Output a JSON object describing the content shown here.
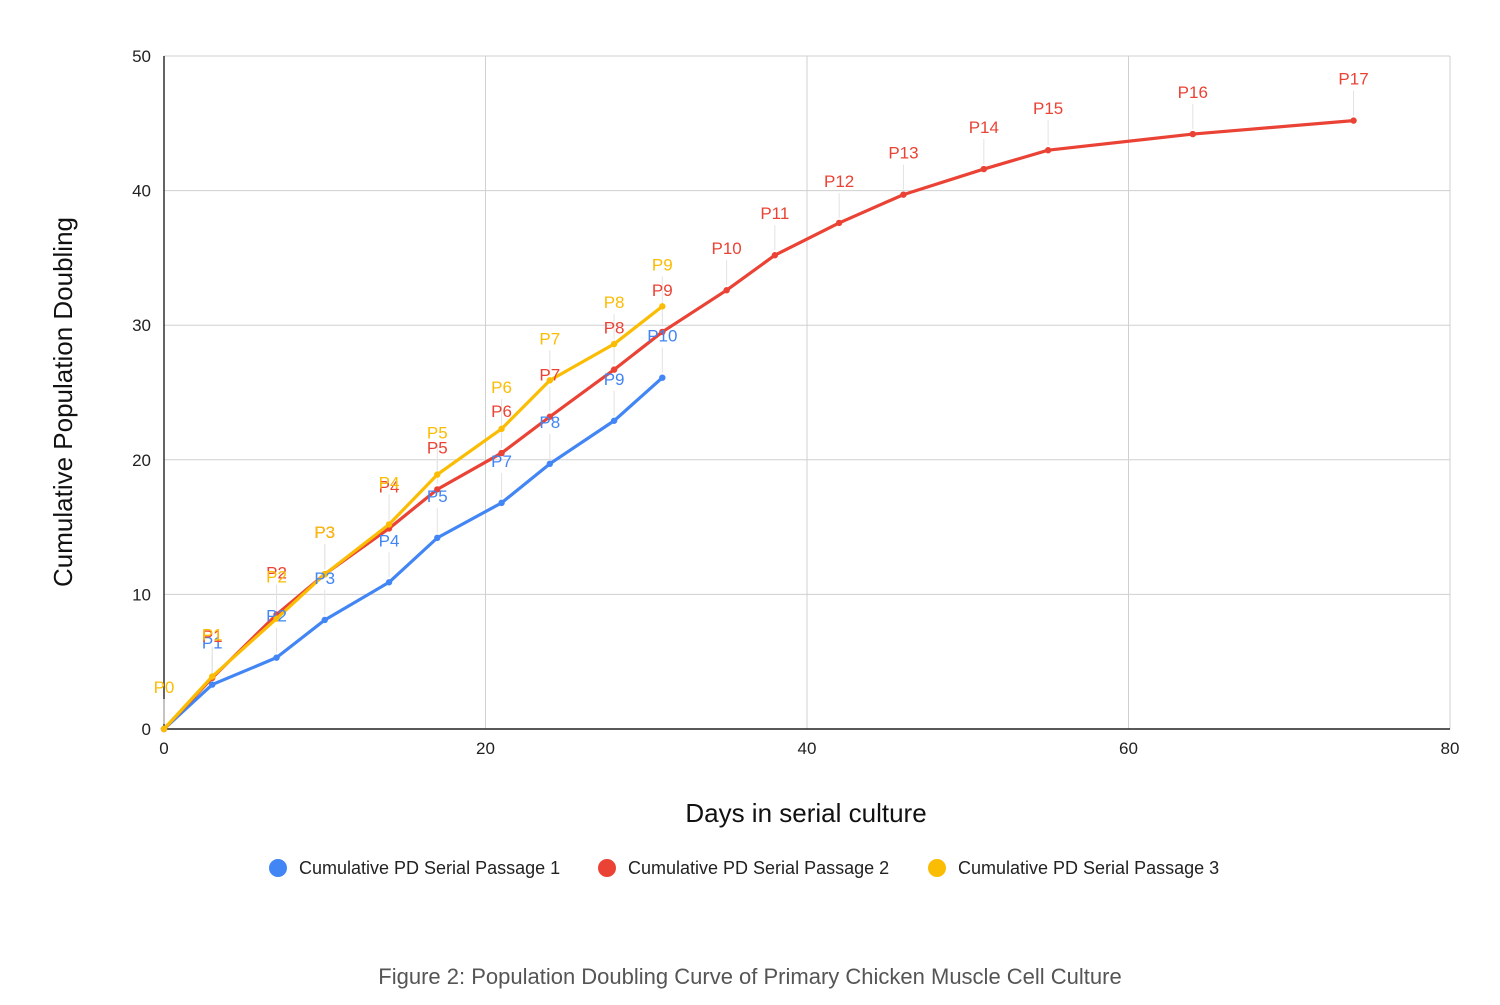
{
  "caption": "Figure 2: Population Doubling Curve of Primary Chicken Muscle Cell Culture",
  "chart_data": {
    "type": "line",
    "title": "",
    "xlabel": "Days in serial culture",
    "ylabel": "Cumulative Population Doubling",
    "xlim": [
      0,
      80
    ],
    "ylim": [
      0,
      50
    ],
    "x_ticks": [
      "0",
      "20",
      "40",
      "60",
      "80"
    ],
    "y_ticks": [
      "0",
      "10",
      "20",
      "30",
      "40",
      "50"
    ],
    "grid": true,
    "legend_position": "bottom",
    "series": [
      {
        "name": "Cumulative PD Serial Passage 1",
        "color": "#4285f4",
        "points": [
          {
            "x": 0,
            "y": 0,
            "label": ""
          },
          {
            "x": 3,
            "y": 3.3,
            "label": "P1"
          },
          {
            "x": 7,
            "y": 5.3,
            "label": "P2"
          },
          {
            "x": 10,
            "y": 8.1,
            "label": "P3"
          },
          {
            "x": 14,
            "y": 10.9,
            "label": "P4"
          },
          {
            "x": 17,
            "y": 14.2,
            "label": "P5"
          },
          {
            "x": 21,
            "y": 16.8,
            "label": "P7"
          },
          {
            "x": 24,
            "y": 19.7,
            "label": "P8"
          },
          {
            "x": 28,
            "y": 22.9,
            "label": "P9"
          },
          {
            "x": 31,
            "y": 26.1,
            "label": "P10"
          }
        ]
      },
      {
        "name": "Cumulative PD Serial Passage 2",
        "color": "#ea4335",
        "points": [
          {
            "x": 0,
            "y": 0,
            "label": ""
          },
          {
            "x": 3,
            "y": 3.8,
            "label": "P1"
          },
          {
            "x": 7,
            "y": 8.5,
            "label": "P2"
          },
          {
            "x": 10,
            "y": 11.5,
            "label": "P3"
          },
          {
            "x": 14,
            "y": 14.9,
            "label": "P4"
          },
          {
            "x": 17,
            "y": 17.8,
            "label": "P5"
          },
          {
            "x": 21,
            "y": 20.5,
            "label": "P6"
          },
          {
            "x": 24,
            "y": 23.2,
            "label": "P7"
          },
          {
            "x": 28,
            "y": 26.7,
            "label": "P8"
          },
          {
            "x": 31,
            "y": 29.5,
            "label": "P9"
          },
          {
            "x": 35,
            "y": 32.6,
            "label": "P10"
          },
          {
            "x": 38,
            "y": 35.2,
            "label": "P11"
          },
          {
            "x": 42,
            "y": 37.6,
            "label": "P12"
          },
          {
            "x": 46,
            "y": 39.7,
            "label": "P13"
          },
          {
            "x": 51,
            "y": 41.6,
            "label": "P14"
          },
          {
            "x": 55,
            "y": 43.0,
            "label": "P15"
          },
          {
            "x": 64,
            "y": 44.2,
            "label": "P16"
          },
          {
            "x": 74,
            "y": 45.2,
            "label": "P17"
          }
        ]
      },
      {
        "name": "Cumulative PD Serial Passage 3",
        "color": "#fbbc04",
        "points": [
          {
            "x": 0,
            "y": 0,
            "label": "P0"
          },
          {
            "x": 3,
            "y": 3.9,
            "label": "P1"
          },
          {
            "x": 7,
            "y": 8.2,
            "label": "P2"
          },
          {
            "x": 10,
            "y": 11.5,
            "label": "P3"
          },
          {
            "x": 14,
            "y": 15.2,
            "label": "P4"
          },
          {
            "x": 17,
            "y": 18.9,
            "label": "P5"
          },
          {
            "x": 21,
            "y": 22.3,
            "label": "P6"
          },
          {
            "x": 24,
            "y": 25.9,
            "label": "P7"
          },
          {
            "x": 28,
            "y": 28.6,
            "label": "P8"
          },
          {
            "x": 31,
            "y": 31.4,
            "label": "P9"
          }
        ]
      }
    ]
  }
}
